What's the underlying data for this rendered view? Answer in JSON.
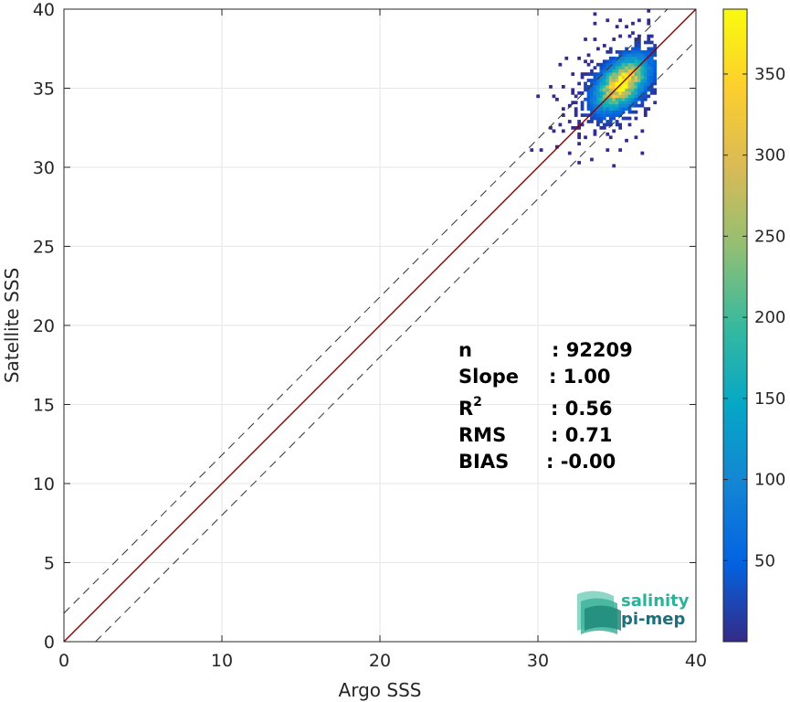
{
  "chart_data": {
    "type": "heatmap",
    "xlabel": "Argo SSS",
    "ylabel": "Satellite SSS",
    "xlim": [
      0,
      40
    ],
    "ylim": [
      0,
      40
    ],
    "xticks": [
      0,
      10,
      20,
      30,
      40
    ],
    "yticks": [
      0,
      5,
      10,
      15,
      20,
      25,
      30,
      35,
      40
    ],
    "grid": true,
    "lines": [
      {
        "name": "1:1 line",
        "style": "solid",
        "color": "#8b0000",
        "x": [
          0,
          40
        ],
        "y": [
          0,
          40
        ]
      },
      {
        "name": "upper envelope",
        "style": "dashed",
        "color": "#333333",
        "x": [
          0,
          40
        ],
        "y": [
          1.8,
          41.8
        ]
      },
      {
        "name": "lower envelope",
        "style": "dashed",
        "color": "#333333",
        "x": [
          2,
          40
        ],
        "y": [
          0,
          38
        ]
      }
    ],
    "density": {
      "center": [
        35.2,
        35.2
      ],
      "major_sd": 0.85,
      "minor_sd": 0.5,
      "x_range": [
        28.5,
        37.5
      ],
      "y_range": [
        28.0,
        40.0
      ],
      "peak_count": 380
    },
    "colorbar": {
      "colormap": "parula",
      "range": [
        0,
        390
      ],
      "ticks": [
        50,
        100,
        150,
        200,
        250,
        300,
        350
      ]
    },
    "stats": [
      {
        "label": "n",
        "value": ": 92209"
      },
      {
        "label": "Slope",
        "value": ": 1.00"
      },
      {
        "label": "R",
        "sup": "2",
        "value": ": 0.56"
      },
      {
        "label": "RMS",
        "value": ": 0.71"
      },
      {
        "label": "BIAS",
        "value": ": -0.00"
      }
    ]
  },
  "logo": {
    "line1": "salinity",
    "line2": "pi-mep",
    "colors": {
      "line1": "#2bb39a",
      "line2": "#1e6f7a"
    }
  }
}
